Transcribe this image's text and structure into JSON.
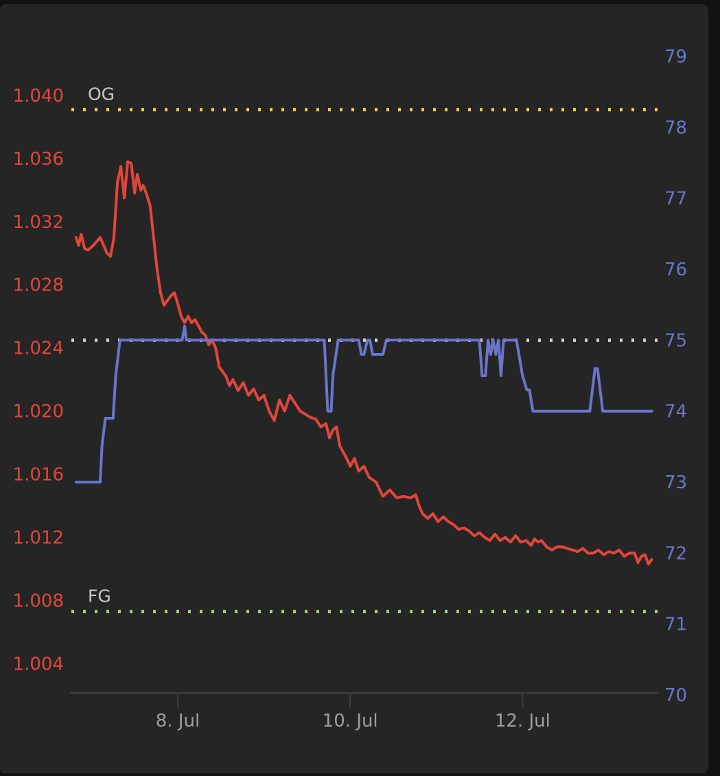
{
  "chart_data": {
    "type": "line",
    "colors": {
      "gravity": "#e2463a",
      "temperature": "#6a75cc",
      "og_line": "#e6cf4e",
      "fg_line": "#a9cf6a",
      "target_line": "#d0d0d0",
      "axis_text": "#9e9e9e",
      "ref_text": "#c8c8c8",
      "baseline": "#3e3e3e"
    },
    "x_ticks": [
      {
        "label": "8. Jul",
        "day": 8
      },
      {
        "label": "10. Jul",
        "day": 10
      },
      {
        "label": "12. Jul",
        "day": 12
      }
    ],
    "xlim": [
      6.75,
      13.55
    ],
    "left_axis": {
      "ticks": [
        "1.004",
        "1.008",
        "1.012",
        "1.016",
        "1.020",
        "1.024",
        "1.028",
        "1.032",
        "1.036",
        "1.040"
      ],
      "tick_values": [
        1.004,
        1.008,
        1.012,
        1.016,
        1.02,
        1.024,
        1.028,
        1.032,
        1.036,
        1.04
      ],
      "range": [
        1.0021,
        1.043
      ]
    },
    "right_axis": {
      "ticks": [
        "70",
        "71",
        "72",
        "73",
        "74",
        "75",
        "76",
        "77",
        "78",
        "79"
      ],
      "tick_values": [
        70,
        71,
        72,
        73,
        74,
        75,
        76,
        77,
        78,
        79
      ],
      "range": [
        70,
        79
      ]
    },
    "reference_lines": [
      {
        "label": "OG",
        "axis": "left",
        "value": 1.0391,
        "color": "og_line"
      },
      {
        "label": "FG",
        "axis": "left",
        "value": 1.0073,
        "color": "fg_line"
      },
      {
        "label": "",
        "axis": "right",
        "value": 75.0,
        "color": "target_line"
      }
    ],
    "series": [
      {
        "key": "gravity",
        "axis": "left",
        "x": [
          6.82,
          6.85,
          6.88,
          6.92,
          6.96,
          7.02,
          7.1,
          7.18,
          7.22,
          7.26,
          7.3,
          7.34,
          7.38,
          7.42,
          7.46,
          7.5,
          7.53,
          7.57,
          7.6,
          7.64,
          7.68,
          7.72,
          7.76,
          7.8,
          7.84,
          7.88,
          7.92,
          7.96,
          8.0,
          8.04,
          8.08,
          8.12,
          8.16,
          8.2,
          8.24,
          8.28,
          8.32,
          8.36,
          8.4,
          8.44,
          8.48,
          8.52,
          8.56,
          8.6,
          8.64,
          8.7,
          8.76,
          8.82,
          8.88,
          8.94,
          9.0,
          9.06,
          9.12,
          9.18,
          9.24,
          9.3,
          9.36,
          9.42,
          9.48,
          9.54,
          9.6,
          9.66,
          9.72,
          9.76,
          9.8,
          9.84,
          9.88,
          9.92,
          9.96,
          10.0,
          10.05,
          10.1,
          10.16,
          10.22,
          10.3,
          10.38,
          10.46,
          10.54,
          10.62,
          10.7,
          10.76,
          10.8,
          10.84,
          10.9,
          10.96,
          11.02,
          11.08,
          11.14,
          11.2,
          11.26,
          11.32,
          11.38,
          11.44,
          11.5,
          11.56,
          11.62,
          11.68,
          11.74,
          11.8,
          11.86,
          11.92,
          11.98,
          12.04,
          12.1,
          12.14,
          12.18,
          12.22,
          12.28,
          12.34,
          12.4,
          12.46,
          12.52,
          12.58,
          12.64,
          12.7,
          12.76,
          12.82,
          12.88,
          12.94,
          13.0,
          13.06,
          13.12,
          13.18,
          13.24,
          13.3,
          13.34,
          13.38,
          13.42,
          13.46,
          13.5
        ],
        "values": [
          1.031,
          1.0305,
          1.0312,
          1.0303,
          1.0302,
          1.0305,
          1.031,
          1.03,
          1.0298,
          1.031,
          1.0345,
          1.0355,
          1.0335,
          1.0358,
          1.0357,
          1.0338,
          1.035,
          1.034,
          1.0343,
          1.0337,
          1.033,
          1.031,
          1.029,
          1.0275,
          1.0267,
          1.027,
          1.0273,
          1.0275,
          1.0268,
          1.026,
          1.0256,
          1.026,
          1.0256,
          1.0258,
          1.0254,
          1.025,
          1.0248,
          1.0242,
          1.0245,
          1.024,
          1.0228,
          1.0225,
          1.0222,
          1.0216,
          1.022,
          1.0213,
          1.0218,
          1.021,
          1.0214,
          1.0207,
          1.021,
          1.02,
          1.0194,
          1.0207,
          1.02,
          1.021,
          1.0205,
          1.02,
          1.0198,
          1.0196,
          1.0195,
          1.019,
          1.0192,
          1.0183,
          1.0188,
          1.019,
          1.0178,
          1.0174,
          1.017,
          1.0165,
          1.017,
          1.0162,
          1.0165,
          1.0158,
          1.0155,
          1.0146,
          1.015,
          1.0145,
          1.0146,
          1.0145,
          1.0147,
          1.014,
          1.0135,
          1.0132,
          1.0135,
          1.013,
          1.0133,
          1.013,
          1.0128,
          1.0125,
          1.0126,
          1.0124,
          1.0121,
          1.0123,
          1.012,
          1.0118,
          1.0122,
          1.0118,
          1.012,
          1.0117,
          1.0121,
          1.0117,
          1.0118,
          1.0115,
          1.0119,
          1.0117,
          1.0118,
          1.0114,
          1.0112,
          1.0114,
          1.0114,
          1.0113,
          1.0112,
          1.0111,
          1.0113,
          1.011,
          1.011,
          1.0112,
          1.0109,
          1.0111,
          1.011,
          1.0112,
          1.0108,
          1.011,
          1.011,
          1.0104,
          1.0108,
          1.0109,
          1.0103,
          1.0106
        ]
      },
      {
        "key": "temperature",
        "axis": "right",
        "x": [
          6.82,
          7.1,
          7.12,
          7.16,
          7.25,
          7.28,
          7.33,
          8.05,
          8.08,
          8.1,
          8.13,
          9.7,
          9.74,
          9.78,
          9.8,
          9.86,
          9.9,
          9.95,
          10.1,
          10.13,
          10.16,
          10.2,
          10.23,
          10.26,
          10.3,
          10.35,
          10.38,
          10.42,
          10.45,
          11.5,
          11.53,
          11.57,
          11.6,
          11.63,
          11.66,
          11.69,
          11.72,
          11.75,
          11.78,
          11.81,
          11.84,
          11.87,
          11.9,
          11.93,
          12.0,
          12.05,
          12.08,
          12.12,
          12.15,
          12.2,
          12.78,
          12.81,
          12.84,
          12.87,
          12.9,
          12.93,
          13.5
        ],
        "values": [
          73.0,
          73.0,
          73.5,
          73.9,
          73.9,
          74.5,
          75.0,
          75.0,
          75.2,
          75.0,
          75.0,
          75.0,
          74.0,
          74.0,
          74.5,
          75.0,
          75.0,
          75.0,
          75.0,
          74.8,
          74.8,
          75.0,
          75.0,
          74.8,
          74.8,
          74.8,
          74.8,
          75.0,
          75.0,
          75.0,
          74.5,
          74.5,
          75.0,
          74.8,
          75.0,
          74.8,
          75.0,
          74.5,
          75.0,
          75.0,
          75.0,
          75.0,
          75.0,
          75.0,
          74.5,
          74.3,
          74.3,
          74.0,
          74.0,
          74.0,
          74.0,
          74.3,
          74.6,
          74.6,
          74.3,
          74.0,
          74.0
        ]
      }
    ]
  }
}
